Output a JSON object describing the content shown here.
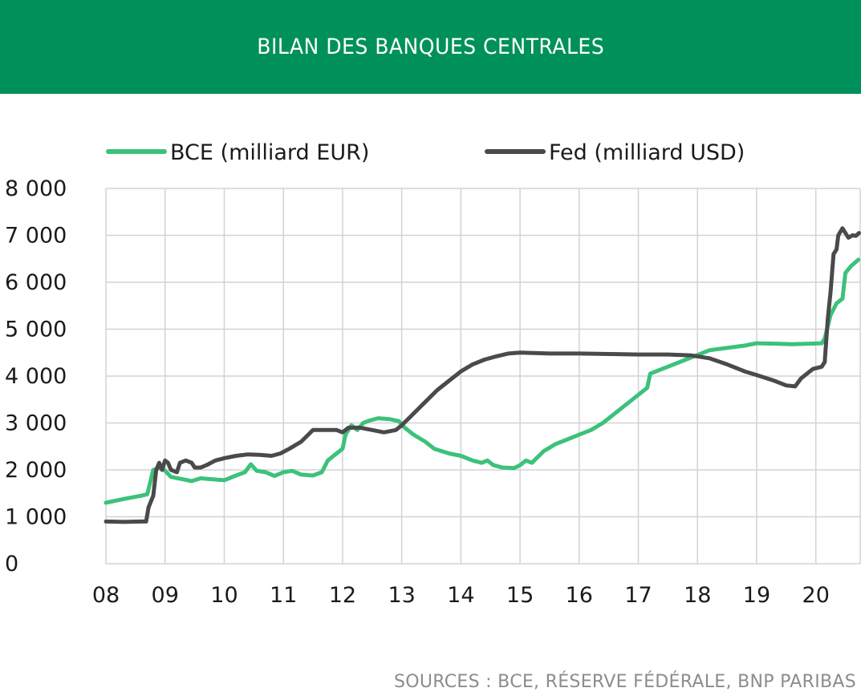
{
  "header": {
    "title": "BILAN DES BANQUES CENTRALES"
  },
  "source": "SOURCES : BCE, RÉSERVE FÉDÉRALE, BNP PARIBAS",
  "chart_data": {
    "type": "line",
    "title": "BILAN DES BANQUES CENTRALES",
    "xlabel": "",
    "ylabel": "",
    "xlim": [
      2008,
      2020.75
    ],
    "ylim": [
      0,
      8000
    ],
    "grid": true,
    "legend": "top",
    "x_tick_values": [
      2008,
      2009,
      2010,
      2011,
      2012,
      2013,
      2014,
      2015,
      2016,
      2017,
      2018,
      2019,
      2020
    ],
    "x_tick_labels": [
      "08",
      "09",
      "10",
      "11",
      "12",
      "13",
      "14",
      "15",
      "16",
      "17",
      "18",
      "19",
      "20"
    ],
    "y_tick_values": [
      0,
      1000,
      2000,
      3000,
      4000,
      5000,
      6000,
      7000,
      8000
    ],
    "y_tick_labels": [
      "0",
      "1 000",
      "2 000",
      "3 000",
      "4 000",
      "5 000",
      "6 000",
      "7 000",
      "8 000"
    ],
    "series": [
      {
        "name": "BCE (milliard EUR)",
        "color": "#3cc27a",
        "points": [
          [
            2008.0,
            1300
          ],
          [
            2008.3,
            1380
          ],
          [
            2008.6,
            1450
          ],
          [
            2008.7,
            1480
          ],
          [
            2008.8,
            2000
          ],
          [
            2008.95,
            2050
          ],
          [
            2009.1,
            1850
          ],
          [
            2009.3,
            1800
          ],
          [
            2009.45,
            1760
          ],
          [
            2009.6,
            1820
          ],
          [
            2009.8,
            1800
          ],
          [
            2010.0,
            1780
          ],
          [
            2010.2,
            1880
          ],
          [
            2010.35,
            1950
          ],
          [
            2010.45,
            2120
          ],
          [
            2010.55,
            1980
          ],
          [
            2010.7,
            1950
          ],
          [
            2010.85,
            1870
          ],
          [
            2011.0,
            1950
          ],
          [
            2011.15,
            1980
          ],
          [
            2011.3,
            1900
          ],
          [
            2011.5,
            1880
          ],
          [
            2011.65,
            1950
          ],
          [
            2011.75,
            2200
          ],
          [
            2011.9,
            2350
          ],
          [
            2012.0,
            2450
          ],
          [
            2012.05,
            2750
          ],
          [
            2012.15,
            2950
          ],
          [
            2012.25,
            2850
          ],
          [
            2012.35,
            3000
          ],
          [
            2012.45,
            3050
          ],
          [
            2012.6,
            3100
          ],
          [
            2012.8,
            3080
          ],
          [
            2012.95,
            3040
          ],
          [
            2013.05,
            2900
          ],
          [
            2013.2,
            2750
          ],
          [
            2013.4,
            2600
          ],
          [
            2013.55,
            2450
          ],
          [
            2013.8,
            2350
          ],
          [
            2014.0,
            2300
          ],
          [
            2014.2,
            2200
          ],
          [
            2014.35,
            2150
          ],
          [
            2014.45,
            2200
          ],
          [
            2014.55,
            2100
          ],
          [
            2014.7,
            2050
          ],
          [
            2014.9,
            2040
          ],
          [
            2015.0,
            2100
          ],
          [
            2015.1,
            2200
          ],
          [
            2015.2,
            2150
          ],
          [
            2015.4,
            2400
          ],
          [
            2015.6,
            2550
          ],
          [
            2015.8,
            2650
          ],
          [
            2016.0,
            2750
          ],
          [
            2016.2,
            2850
          ],
          [
            2016.4,
            3000
          ],
          [
            2016.6,
            3200
          ],
          [
            2016.8,
            3400
          ],
          [
            2017.0,
            3600
          ],
          [
            2017.15,
            3750
          ],
          [
            2017.2,
            4050
          ],
          [
            2017.4,
            4150
          ],
          [
            2017.6,
            4250
          ],
          [
            2017.8,
            4350
          ],
          [
            2018.0,
            4450
          ],
          [
            2018.2,
            4550
          ],
          [
            2018.5,
            4600
          ],
          [
            2018.8,
            4650
          ],
          [
            2019.0,
            4700
          ],
          [
            2019.3,
            4690
          ],
          [
            2019.6,
            4680
          ],
          [
            2019.9,
            4690
          ],
          [
            2020.1,
            4700
          ],
          [
            2020.15,
            4800
          ],
          [
            2020.25,
            5300
          ],
          [
            2020.35,
            5550
          ],
          [
            2020.45,
            5650
          ],
          [
            2020.5,
            6200
          ],
          [
            2020.6,
            6350
          ],
          [
            2020.72,
            6480
          ]
        ]
      },
      {
        "name": "Fed (milliard USD)",
        "color": "#4a4a4a",
        "points": [
          [
            2008.0,
            900
          ],
          [
            2008.3,
            890
          ],
          [
            2008.6,
            900
          ],
          [
            2008.68,
            900
          ],
          [
            2008.72,
            1200
          ],
          [
            2008.8,
            1450
          ],
          [
            2008.85,
            2000
          ],
          [
            2008.9,
            2150
          ],
          [
            2008.95,
            2000
          ],
          [
            2009.0,
            2200
          ],
          [
            2009.05,
            2150
          ],
          [
            2009.1,
            2000
          ],
          [
            2009.2,
            1950
          ],
          [
            2009.25,
            2150
          ],
          [
            2009.35,
            2200
          ],
          [
            2009.45,
            2150
          ],
          [
            2009.5,
            2050
          ],
          [
            2009.6,
            2050
          ],
          [
            2009.7,
            2100
          ],
          [
            2009.85,
            2200
          ],
          [
            2010.0,
            2250
          ],
          [
            2010.2,
            2300
          ],
          [
            2010.4,
            2330
          ],
          [
            2010.6,
            2320
          ],
          [
            2010.8,
            2300
          ],
          [
            2010.95,
            2350
          ],
          [
            2011.1,
            2450
          ],
          [
            2011.3,
            2600
          ],
          [
            2011.5,
            2850
          ],
          [
            2011.7,
            2850
          ],
          [
            2011.9,
            2850
          ],
          [
            2012.0,
            2800
          ],
          [
            2012.1,
            2900
          ],
          [
            2012.3,
            2900
          ],
          [
            2012.5,
            2850
          ],
          [
            2012.7,
            2800
          ],
          [
            2012.9,
            2850
          ],
          [
            2013.0,
            2950
          ],
          [
            2013.2,
            3200
          ],
          [
            2013.4,
            3450
          ],
          [
            2013.6,
            3700
          ],
          [
            2013.8,
            3900
          ],
          [
            2014.0,
            4100
          ],
          [
            2014.2,
            4250
          ],
          [
            2014.4,
            4350
          ],
          [
            2014.6,
            4420
          ],
          [
            2014.8,
            4480
          ],
          [
            2015.0,
            4500
          ],
          [
            2015.5,
            4480
          ],
          [
            2016.0,
            4480
          ],
          [
            2016.5,
            4470
          ],
          [
            2017.0,
            4460
          ],
          [
            2017.5,
            4460
          ],
          [
            2017.9,
            4440
          ],
          [
            2018.2,
            4380
          ],
          [
            2018.5,
            4250
          ],
          [
            2018.8,
            4100
          ],
          [
            2019.0,
            4020
          ],
          [
            2019.3,
            3900
          ],
          [
            2019.5,
            3800
          ],
          [
            2019.65,
            3780
          ],
          [
            2019.75,
            3950
          ],
          [
            2019.85,
            4050
          ],
          [
            2019.95,
            4150
          ],
          [
            2020.1,
            4200
          ],
          [
            2020.15,
            4300
          ],
          [
            2020.2,
            5200
          ],
          [
            2020.25,
            5800
          ],
          [
            2020.3,
            6600
          ],
          [
            2020.35,
            6700
          ],
          [
            2020.38,
            7000
          ],
          [
            2020.45,
            7150
          ],
          [
            2020.55,
            6950
          ],
          [
            2020.62,
            7000
          ],
          [
            2020.68,
            6990
          ],
          [
            2020.73,
            7050
          ]
        ]
      }
    ]
  }
}
